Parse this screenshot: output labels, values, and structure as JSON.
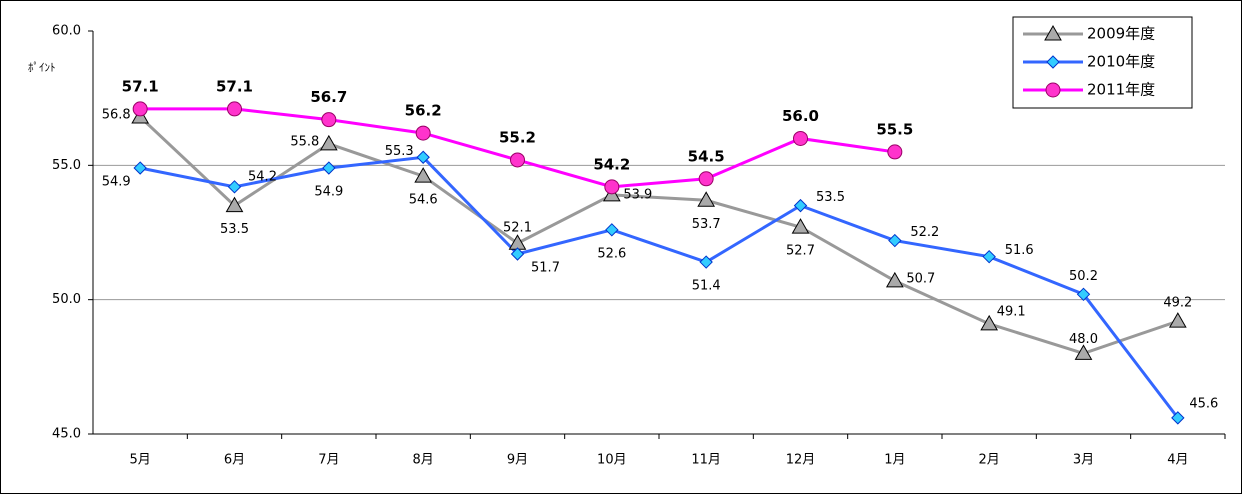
{
  "chart_data": {
    "type": "line",
    "y_label": "ﾎﾟｲﾝﾄ",
    "categories": [
      "5月",
      "6月",
      "7月",
      "8月",
      "9月",
      "10月",
      "11月",
      "12月",
      "1月",
      "2月",
      "3月",
      "4月"
    ],
    "series": [
      {
        "name": "2009年度",
        "color": "#999999",
        "marker": "triangle",
        "values": [
          56.8,
          53.5,
          55.8,
          54.6,
          52.1,
          53.9,
          53.7,
          52.7,
          50.7,
          49.1,
          48.0,
          49.2
        ],
        "value_labels": [
          "56.8",
          "53.5",
          "55.8",
          "54.6",
          "52.1",
          "53.9",
          "53.7",
          "52.7",
          "50.7",
          "49.1",
          "48.0",
          "49.2"
        ]
      },
      {
        "name": "2010年度",
        "color": "#3366ff",
        "marker": "diamond",
        "values": [
          54.9,
          54.2,
          54.9,
          55.3,
          51.7,
          52.6,
          51.4,
          53.5,
          52.2,
          51.6,
          50.2,
          45.6
        ],
        "value_labels": [
          "54.9",
          "54.2",
          "54.9",
          "55.3",
          "51.7",
          "52.6",
          "51.4",
          "53.5",
          "52.2",
          "51.6",
          "50.2",
          "45.6"
        ]
      },
      {
        "name": "2011年度",
        "color": "#ff00ff",
        "marker": "circle",
        "values": [
          57.1,
          57.1,
          56.7,
          56.2,
          55.2,
          54.2,
          54.5,
          56.0,
          55.5,
          null,
          null,
          null
        ],
        "value_labels": [
          "57.1",
          "57.1",
          "56.7",
          "56.2",
          "55.2",
          "54.2",
          "54.5",
          "56.0",
          "55.5",
          null,
          null,
          null
        ]
      }
    ],
    "ylim": [
      45,
      60
    ],
    "yticks": [
      {
        "value": 45,
        "label": "45.0"
      },
      {
        "value": 50,
        "label": "50.0"
      },
      {
        "value": 55,
        "label": "55.0"
      },
      {
        "value": 60,
        "label": "60.0"
      }
    ],
    "grid": true,
    "legend": "top-right"
  }
}
